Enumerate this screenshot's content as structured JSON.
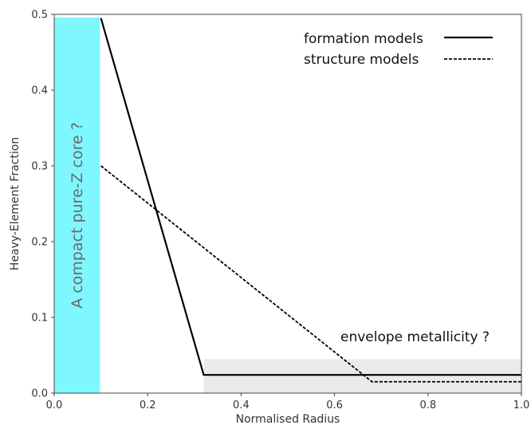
{
  "chart_data": {
    "type": "line",
    "xlabel": "Normalised Radius",
    "ylabel": "Heavy-Element Fraction",
    "xlim": [
      0.0,
      1.0
    ],
    "ylim": [
      0.0,
      0.5
    ],
    "x_ticks": [
      "0.0",
      "0.2",
      "0.4",
      "0.6",
      "0.8",
      "1.0"
    ],
    "y_ticks": [
      "0.0",
      "0.1",
      "0.2",
      "0.3",
      "0.4",
      "0.5"
    ],
    "grid": false,
    "legend_position": "top-right",
    "series": [
      {
        "name": "formation models",
        "style": "solid",
        "color": "#000000",
        "x": [
          0.1,
          0.32,
          1.0
        ],
        "y": [
          0.495,
          0.024,
          0.024
        ]
      },
      {
        "name": "structure models",
        "style": "dashed",
        "color": "#000000",
        "x": [
          0.1,
          0.68,
          1.0
        ],
        "y": [
          0.3,
          0.015,
          0.015
        ]
      }
    ],
    "regions": [
      {
        "label": "A compact pure-Z core ?",
        "color": "#7ff7ff",
        "x": [
          0.0,
          0.098
        ],
        "y": [
          0.0,
          0.496
        ]
      },
      {
        "label": "envelope metallicity ?",
        "color": "#eaeaea",
        "x": [
          0.32,
          1.0
        ],
        "y": [
          0.0,
          0.045
        ]
      }
    ]
  }
}
